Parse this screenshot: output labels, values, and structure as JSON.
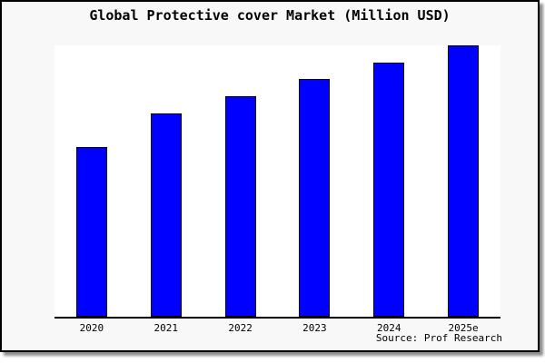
{
  "colors": {
    "bar_fill": "#0000ff",
    "bar_edge": "#000000",
    "canvas_background": "#f8f8f8",
    "plot_background": "#ffffff",
    "axis": "#000000",
    "text": "#000000"
  },
  "chart_data": {
    "type": "bar",
    "title": "Global Protective cover Market (Million USD)",
    "categories": [
      "2020",
      "2021",
      "2022",
      "2023",
      "2024",
      "2025e"
    ],
    "values": [
      500,
      600,
      650,
      700,
      750,
      800
    ],
    "xlabel": "",
    "ylabel": "",
    "ylim": [
      0,
      800
    ],
    "grid": false,
    "legend": null,
    "y_axis_ticks_visible": false,
    "source": "Source: Prof Research"
  }
}
